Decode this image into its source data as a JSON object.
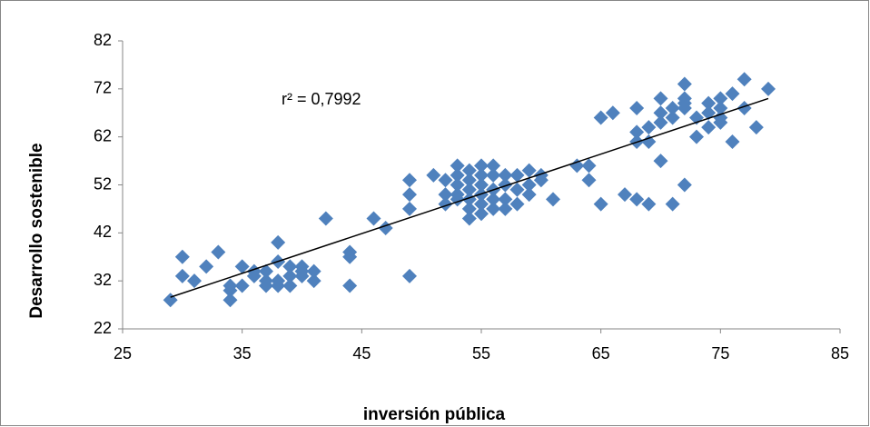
{
  "chart_data": {
    "type": "scatter",
    "x_label": "inversión pública",
    "y_label": "Desarrollo sostenible",
    "annotation": "r² = 0,7992",
    "color": "#4f81bd",
    "xlim": [
      25,
      85
    ],
    "xticks": [
      25,
      35,
      45,
      55,
      65,
      75,
      85
    ],
    "ylim": [
      22,
      82
    ],
    "yticks": [
      22,
      32,
      42,
      52,
      62,
      72,
      82
    ],
    "grid": false,
    "x": [
      29,
      30,
      30,
      31,
      32,
      33,
      34,
      34,
      34,
      35,
      35,
      36,
      36,
      37,
      37,
      37,
      38,
      38,
      38,
      38,
      39,
      39,
      39,
      40,
      40,
      40,
      41,
      41,
      42,
      44,
      44,
      44,
      46,
      47,
      49,
      49,
      49,
      49,
      51,
      52,
      52,
      52,
      53,
      53,
      53,
      53,
      53,
      54,
      54,
      54,
      54,
      54,
      54,
      55,
      55,
      55,
      55,
      55,
      55,
      56,
      56,
      56,
      56,
      56,
      57,
      57,
      57,
      57,
      58,
      58,
      58,
      59,
      59,
      59,
      60,
      60,
      61,
      63,
      64,
      64,
      65,
      65,
      66,
      67,
      68,
      68,
      68,
      68,
      69,
      69,
      69,
      70,
      70,
      70,
      70,
      71,
      71,
      71,
      72,
      72,
      72,
      72,
      72,
      73,
      73,
      74,
      74,
      74,
      75,
      75,
      75,
      75,
      76,
      76,
      77,
      77,
      78,
      79
    ],
    "values": [
      28,
      33,
      37,
      32,
      35,
      38,
      30,
      28,
      31,
      35,
      31,
      34,
      33,
      32,
      31,
      34,
      40,
      36,
      32,
      31,
      35,
      33,
      31,
      34,
      35,
      33,
      34,
      32,
      45,
      38,
      37,
      31,
      45,
      43,
      47,
      50,
      53,
      33,
      54,
      53,
      50,
      48,
      56,
      54,
      52,
      50,
      49,
      55,
      53,
      51,
      49,
      47,
      45,
      56,
      54,
      52,
      50,
      48,
      46,
      56,
      54,
      51,
      49,
      47,
      54,
      52,
      49,
      47,
      54,
      51,
      48,
      55,
      52,
      50,
      54,
      53,
      49,
      56,
      56,
      53,
      48,
      66,
      67,
      50,
      49,
      61,
      63,
      68,
      48,
      61,
      64,
      57,
      67,
      70,
      65,
      48,
      66,
      68,
      73,
      70,
      69,
      52,
      68,
      66,
      62,
      64,
      67,
      69,
      70,
      68,
      66,
      65,
      71,
      61,
      74,
      68,
      64,
      72
    ],
    "trendline": {
      "x": [
        29,
        79
      ],
      "y": [
        28.6,
        70
      ]
    }
  }
}
